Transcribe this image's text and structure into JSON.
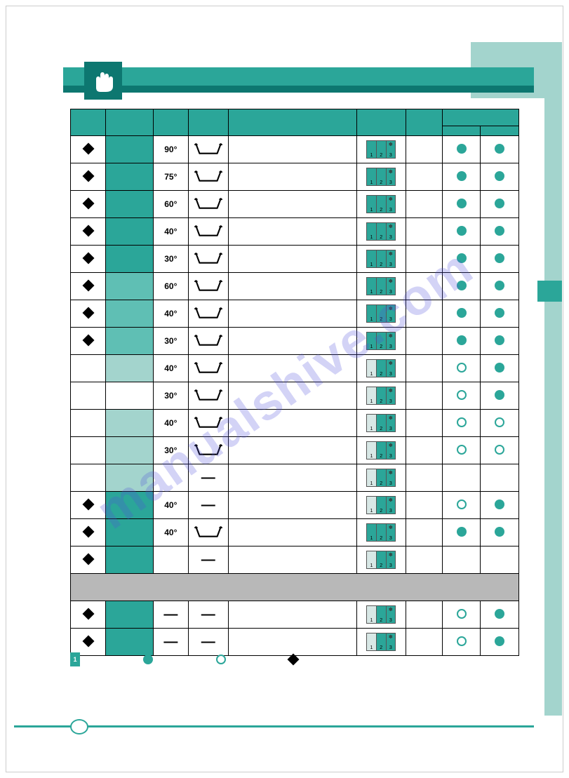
{
  "watermark": "manualshive.com",
  "colors": {
    "teal_dark": "#0d7770",
    "teal": "#2ba699",
    "teal_mid": "#5fbfb4",
    "teal_light": "#a3d4cd",
    "gray": "#b8b8b8",
    "border": "#000000"
  },
  "legend": {
    "note_number": "1",
    "filled_label": "",
    "open_label": "",
    "diamond_label": ""
  },
  "table": {
    "headers": [
      "",
      "",
      "",
      "",
      "",
      "",
      "",
      "",
      ""
    ],
    "rows": [
      {
        "knob": true,
        "label_bg": "teal-dark",
        "temp": "90°",
        "wash": "tub",
        "deterg": [
          true,
          true,
          true
        ],
        "soft": true,
        "opt1": "filled",
        "opt2": "filled"
      },
      {
        "knob": true,
        "label_bg": "teal-dark",
        "temp": "75°",
        "wash": "tub",
        "deterg": [
          true,
          true,
          true
        ],
        "soft": true,
        "opt1": "filled",
        "opt2": "filled"
      },
      {
        "knob": true,
        "label_bg": "teal-dark",
        "temp": "60°",
        "wash": "tub",
        "deterg": [
          true,
          true,
          true
        ],
        "soft": true,
        "opt1": "filled",
        "opt2": "filled"
      },
      {
        "knob": true,
        "label_bg": "teal-dark",
        "temp": "40°",
        "wash": "tub",
        "deterg": [
          true,
          true,
          true
        ],
        "soft": true,
        "opt1": "filled",
        "opt2": "filled"
      },
      {
        "knob": true,
        "label_bg": "teal-dark",
        "temp": "30°",
        "wash": "tub",
        "deterg": [
          true,
          true,
          true
        ],
        "soft": true,
        "opt1": "filled",
        "opt2": "filled"
      },
      {
        "knob": true,
        "label_bg": "teal-mid",
        "temp": "60°",
        "wash": "tub",
        "deterg": [
          true,
          true,
          true
        ],
        "soft": true,
        "opt1": "filled",
        "opt2": "filled"
      },
      {
        "knob": true,
        "label_bg": "teal-mid",
        "temp": "40°",
        "wash": "tub",
        "deterg": [
          true,
          true,
          true
        ],
        "soft": true,
        "opt1": "filled",
        "opt2": "filled"
      },
      {
        "knob": true,
        "label_bg": "teal-mid",
        "temp": "30°",
        "wash": "tub",
        "deterg": [
          true,
          true,
          true
        ],
        "soft": true,
        "opt1": "filled",
        "opt2": "filled"
      },
      {
        "knob": false,
        "label_bg": "teal-light",
        "temp": "40°",
        "wash": "tub",
        "deterg": [
          false,
          true,
          true
        ],
        "soft": true,
        "opt1": "open",
        "opt2": "filled"
      },
      {
        "knob": false,
        "label_bg": "",
        "temp": "30°",
        "wash": "tub",
        "deterg": [
          false,
          true,
          true
        ],
        "soft": true,
        "opt1": "open",
        "opt2": "filled"
      },
      {
        "knob": false,
        "label_bg": "teal-light",
        "temp": "40°",
        "wash": "tub",
        "deterg": [
          false,
          true,
          true
        ],
        "soft": true,
        "opt1": "open",
        "opt2": "open"
      },
      {
        "knob": false,
        "label_bg": "teal-light",
        "temp": "30°",
        "wash": "tub",
        "deterg": [
          false,
          true,
          true
        ],
        "soft": true,
        "opt1": "open",
        "opt2": "open"
      },
      {
        "knob": false,
        "label_bg": "teal-light",
        "temp": "",
        "wash": "dash",
        "deterg": [
          false,
          true,
          true
        ],
        "soft": true,
        "opt1": "",
        "opt2": ""
      },
      {
        "knob": true,
        "label_bg": "teal-dark",
        "temp": "40°",
        "wash": "dash",
        "deterg": [
          false,
          true,
          true
        ],
        "soft": true,
        "opt1": "open",
        "opt2": "filled"
      },
      {
        "knob": true,
        "label_bg": "teal-dark",
        "temp": "40°",
        "wash": "tub",
        "deterg": [
          true,
          true,
          true
        ],
        "soft": true,
        "opt1": "filled",
        "opt2": "filled"
      },
      {
        "knob": true,
        "label_bg": "teal-dark",
        "temp": "",
        "wash": "dash",
        "deterg": [
          false,
          true,
          true
        ],
        "soft": true,
        "opt1": "",
        "opt2": ""
      },
      {
        "gray": true
      },
      {
        "knob": true,
        "label_bg": "teal-dark",
        "temp": "—",
        "wash": "dash",
        "deterg": [
          false,
          true,
          true
        ],
        "soft": true,
        "opt1": "open",
        "opt2": "filled"
      },
      {
        "knob": true,
        "label_bg": "teal-dark",
        "temp": "—",
        "wash": "dash",
        "deterg": [
          false,
          true,
          true
        ],
        "soft": true,
        "opt1": "open",
        "opt2": "filled"
      }
    ]
  }
}
